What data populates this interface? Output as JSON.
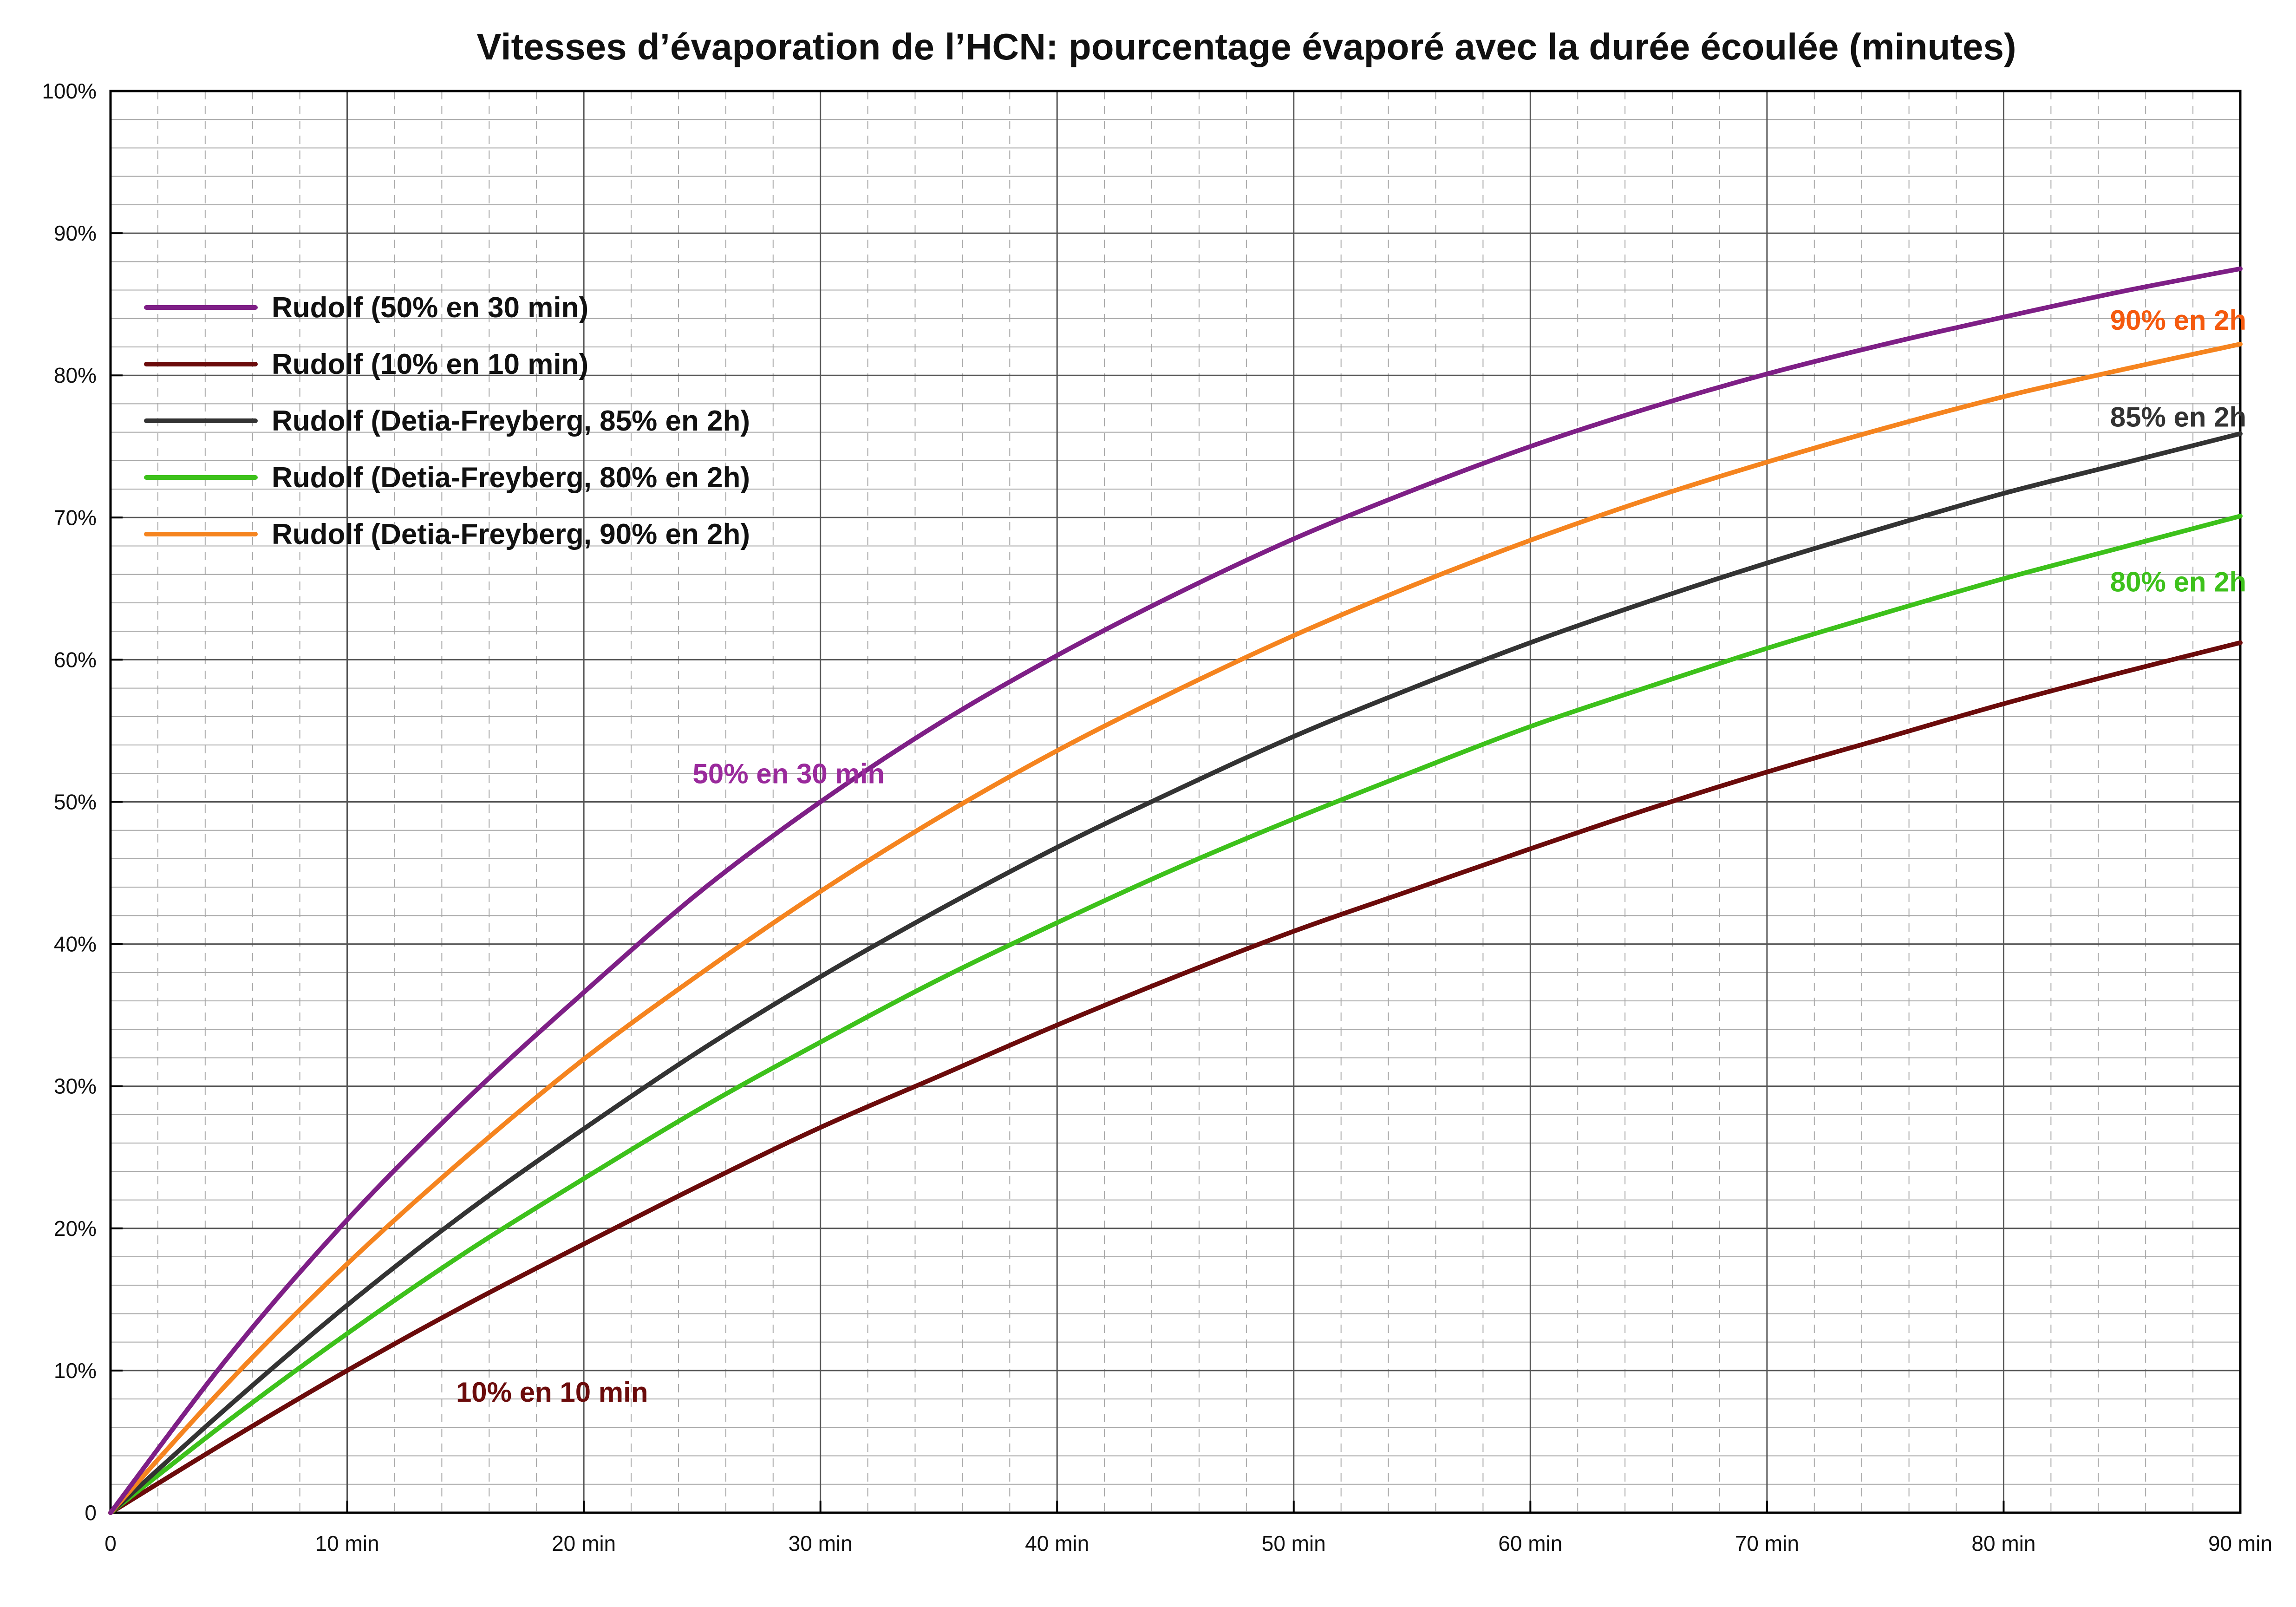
{
  "chart_data": {
    "type": "line",
    "title": "Vitesses d’évaporation de l’HCN: pourcentage évaporé avec la durée écoulée (minutes)",
    "xlabel": "",
    "ylabel": "",
    "xlim": [
      0,
      90
    ],
    "ylim": [
      0,
      100
    ],
    "x_ticks": [
      {
        "value": 0,
        "label": "0"
      },
      {
        "value": 10,
        "label": "10 min"
      },
      {
        "value": 20,
        "label": "20 min"
      },
      {
        "value": 30,
        "label": "30 min"
      },
      {
        "value": 40,
        "label": "40 min"
      },
      {
        "value": 50,
        "label": "50 min"
      },
      {
        "value": 60,
        "label": "60 min"
      },
      {
        "value": 70,
        "label": "70 min"
      },
      {
        "value": 80,
        "label": "80 min"
      },
      {
        "value": 90,
        "label": "90 min"
      }
    ],
    "y_ticks": [
      {
        "value": 0,
        "label": "0"
      },
      {
        "value": 10,
        "label": "10%"
      },
      {
        "value": 20,
        "label": "20%"
      },
      {
        "value": 30,
        "label": "30%"
      },
      {
        "value": 40,
        "label": "40%"
      },
      {
        "value": 50,
        "label": "50%"
      },
      {
        "value": 60,
        "label": "60%"
      },
      {
        "value": 70,
        "label": "70%"
      },
      {
        "value": 80,
        "label": "80%"
      },
      {
        "value": 90,
        "label": "90%"
      },
      {
        "value": 100,
        "label": "100%"
      }
    ],
    "grid": true,
    "legend_position": "top-left",
    "x": [
      0,
      5,
      10,
      15,
      20,
      25,
      30,
      35,
      40,
      45,
      50,
      55,
      60,
      65,
      70,
      75,
      80,
      85,
      90
    ],
    "series": [
      {
        "name": "Rudolf (50% en 30 min)",
        "color": "#7e1f86",
        "values": [
          0,
          11.0,
          20.6,
          29.0,
          36.6,
          43.8,
          50.0,
          55.5,
          60.3,
          64.6,
          68.5,
          71.9,
          75.0,
          77.7,
          80.1,
          82.2,
          84.1,
          85.9,
          87.5
        ]
      },
      {
        "name": "Rudolf (10% en 10 min)",
        "color": "#6b0b0b",
        "values": [
          0,
          5.1,
          10.0,
          14.6,
          18.9,
          23.1,
          27.1,
          30.7,
          34.3,
          37.7,
          40.9,
          43.8,
          46.7,
          49.5,
          52.1,
          54.5,
          56.9,
          59.1,
          61.2
        ]
      },
      {
        "name": "Rudolf (Detia-Freyberg, 85% en 2h)",
        "color": "#333333",
        "values": [
          0,
          7.5,
          14.6,
          21.1,
          27.0,
          32.6,
          37.7,
          42.4,
          46.8,
          50.8,
          54.6,
          58.0,
          61.2,
          64.1,
          66.8,
          69.3,
          71.7,
          73.8,
          75.9
        ]
      },
      {
        "name": "Rudolf (Detia-Freyberg, 80% en 2h)",
        "color": "#3dc11b",
        "values": [
          0,
          6.5,
          12.6,
          18.3,
          23.5,
          28.5,
          33.1,
          37.5,
          41.5,
          45.3,
          48.8,
          52.1,
          55.3,
          58.1,
          60.8,
          63.3,
          65.7,
          67.9,
          70.1
        ]
      },
      {
        "name": "Rudolf (Detia-Freyberg, 90% en 2h)",
        "color": "#f5841f",
        "values": [
          0,
          9.2,
          17.5,
          25.0,
          31.9,
          38.0,
          43.7,
          48.9,
          53.6,
          57.8,
          61.7,
          65.2,
          68.4,
          71.3,
          73.9,
          76.3,
          78.5,
          80.4,
          82.2
        ]
      }
    ],
    "annotations": [
      {
        "text": "90% en 2h",
        "x": 84.5,
        "y": 83.2,
        "color": "#f55a0e"
      },
      {
        "text": "85% en 2h",
        "x": 84.5,
        "y": 76.4,
        "color": "#333333"
      },
      {
        "text": "80% en 2h",
        "x": 84.5,
        "y": 64.8,
        "color": "#3dc11b"
      },
      {
        "text": "50% en 30 min",
        "x": 24.6,
        "y": 51.3,
        "color": "#9a2a9c"
      },
      {
        "text": "10% en 10 min",
        "x": 14.6,
        "y": 7.8,
        "color": "#6b0b0b"
      }
    ]
  }
}
